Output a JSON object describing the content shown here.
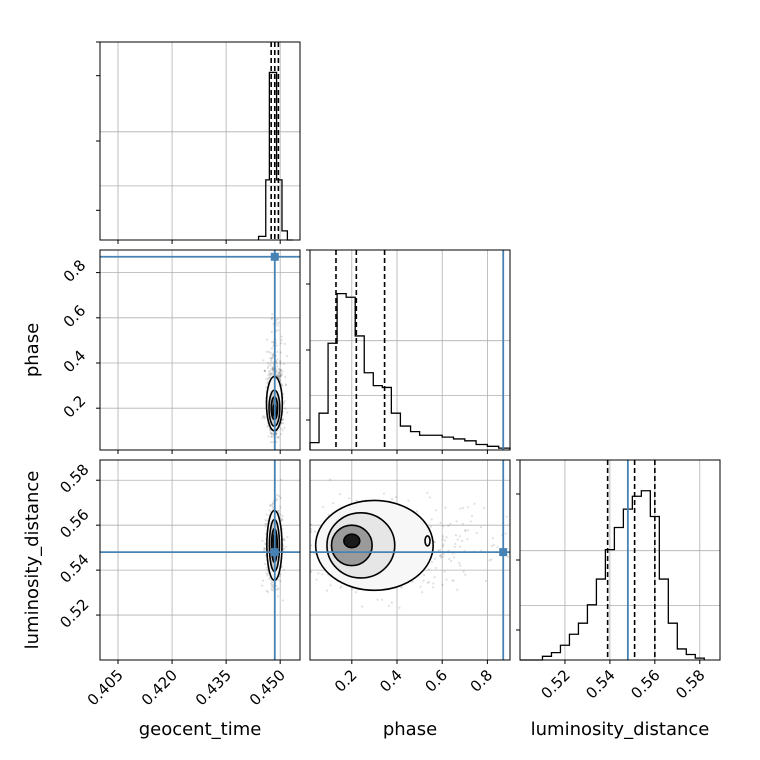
{
  "chart_data": {
    "type": "corner",
    "parameters": [
      "geocent_time",
      "phase",
      "luminosity_distance"
    ],
    "truth_color": "#4682b4",
    "truths": {
      "geocent_time": 0.4485,
      "phase": 0.87,
      "luminosity_distance": 0.548
    },
    "quantiles": {
      "geocent_time": [
        0.4475,
        0.4485,
        0.4495
      ],
      "phase": [
        0.13,
        0.22,
        0.345
      ],
      "luminosity_distance": [
        0.539,
        0.551,
        0.56
      ]
    },
    "axes": {
      "geocent_time": {
        "range": [
          0.4,
          0.4555
        ],
        "ticks": [
          0.405,
          0.42,
          0.435,
          0.45
        ],
        "tick_labels": [
          "0.405",
          "0.420",
          "0.435",
          "0.450"
        ],
        "label": "geocent_time"
      },
      "phase": {
        "range": [
          0.015,
          0.9
        ],
        "ticks": [
          0.2,
          0.4,
          0.6,
          0.8
        ],
        "tick_labels": [
          "0.2",
          "0.4",
          "0.6",
          "0.8"
        ],
        "label": "phase"
      },
      "luminosity_distance": {
        "range": [
          0.5,
          0.589
        ],
        "ticks": [
          0.52,
          0.54,
          0.56,
          0.58
        ],
        "tick_labels": [
          "0.52",
          "0.54",
          "0.56",
          "0.58"
        ],
        "label": "luminosity_distance"
      }
    },
    "histograms": {
      "geocent_time": {
        "bin_edges": [
          0.444,
          0.446,
          0.447,
          0.448,
          0.449,
          0.4505,
          0.452,
          0.4535
        ],
        "counts": [
          0.02,
          0.33,
          0.92,
          0.92,
          0.33,
          0.05,
          0.0
        ]
      },
      "phase": {
        "bin_edges": [
          0.015,
          0.055,
          0.095,
          0.135,
          0.175,
          0.215,
          0.255,
          0.295,
          0.335,
          0.375,
          0.415,
          0.46,
          0.5,
          0.55,
          0.6,
          0.65,
          0.7,
          0.75,
          0.8,
          0.85,
          0.9
        ],
        "counts": [
          0.04,
          0.2,
          0.58,
          0.85,
          0.83,
          0.62,
          0.42,
          0.35,
          0.34,
          0.2,
          0.13,
          0.1,
          0.08,
          0.08,
          0.07,
          0.06,
          0.05,
          0.03,
          0.02,
          0.01
        ]
      },
      "luminosity_distance": {
        "bin_edges": [
          0.5,
          0.51,
          0.514,
          0.518,
          0.522,
          0.526,
          0.53,
          0.534,
          0.538,
          0.542,
          0.546,
          0.55,
          0.554,
          0.558,
          0.562,
          0.566,
          0.57,
          0.574,
          0.578,
          0.582
        ],
        "counts": [
          0.0,
          0.02,
          0.04,
          0.08,
          0.14,
          0.2,
          0.3,
          0.44,
          0.6,
          0.72,
          0.82,
          0.89,
          0.92,
          0.78,
          0.44,
          0.2,
          0.06,
          0.03,
          0.01
        ]
      }
    },
    "title": "",
    "grid": true
  }
}
